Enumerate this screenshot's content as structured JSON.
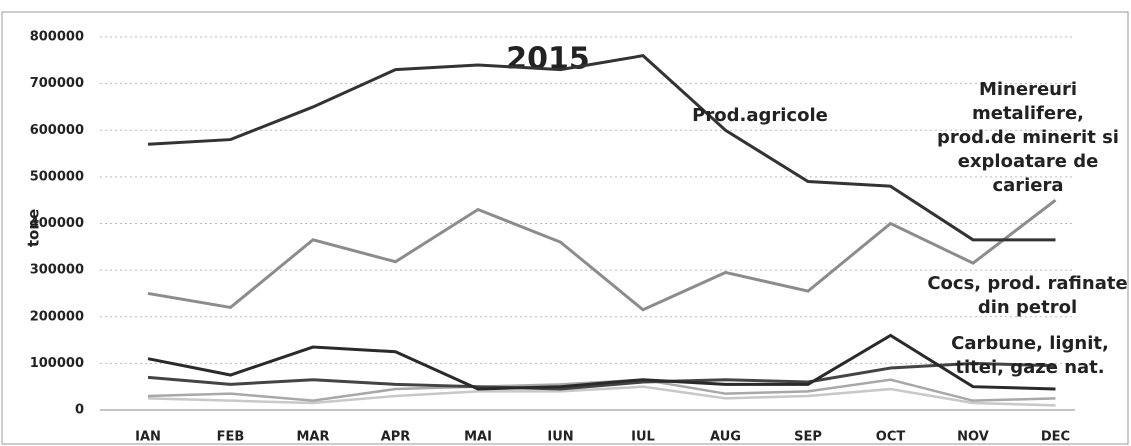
{
  "chart_data": {
    "type": "line",
    "title": "2015",
    "y_label": "tone",
    "categories": [
      "IAN",
      "FEB",
      "MAR",
      "APR",
      "MAI",
      "IUN",
      "IUL",
      "AUG",
      "SEP",
      "OCT",
      "NOV",
      "DEC"
    ],
    "ylim": [
      0,
      800000
    ],
    "yticks": [
      0,
      100000,
      200000,
      300000,
      400000,
      500000,
      600000,
      700000,
      800000
    ],
    "grid": true,
    "series": [
      {
        "name": "Prod.agricole",
        "color": "#333333",
        "values": [
          570000,
          580000,
          650000,
          730000,
          740000,
          730000,
          760000,
          600000,
          490000,
          480000,
          365000,
          365000
        ]
      },
      {
        "name": "Minereuri metalifere, prod.de minerit si exploatare de cariera",
        "color": "#8c8c8c",
        "values": [
          250000,
          220000,
          365000,
          318000,
          430000,
          360000,
          215000,
          295000,
          255000,
          400000,
          315000,
          450000
        ]
      },
      {
        "name": "Cocs, prod. rafinate din petrol",
        "color": "#2a2a2a",
        "values": [
          110000,
          75000,
          135000,
          125000,
          45000,
          50000,
          65000,
          55000,
          55000,
          160000,
          50000,
          45000
        ]
      },
      {
        "name": "Carbune, lignit, titei, gaze nat.",
        "color": "#444444",
        "values": [
          70000,
          55000,
          65000,
          55000,
          50000,
          45000,
          60000,
          65000,
          60000,
          90000,
          100000,
          95000
        ]
      },
      {
        "color": "#a8a8a8",
        "values": [
          30000,
          35000,
          20000,
          45000,
          50000,
          55000,
          65000,
          35000,
          40000,
          65000,
          20000,
          25000
        ]
      },
      {
        "color": "#c8c8c8",
        "values": [
          25000,
          20000,
          15000,
          30000,
          40000,
          40000,
          50000,
          25000,
          30000,
          45000,
          15000,
          10000
        ]
      }
    ]
  }
}
